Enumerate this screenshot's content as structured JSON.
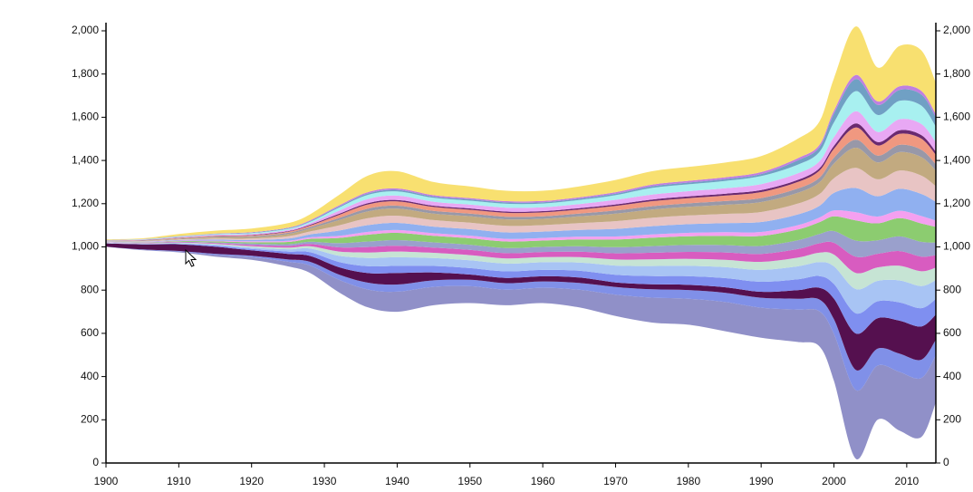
{
  "chart_data": {
    "type": "area",
    "subtype": "streamgraph",
    "title": "",
    "xlabel": "",
    "ylabel": "",
    "baseline": 1000,
    "xlim": [
      1900,
      2014
    ],
    "ylim": [
      0,
      2050
    ],
    "x_ticks": [
      "1900",
      "1910",
      "1920",
      "1930",
      "1940",
      "1950",
      "1960",
      "1970",
      "1980",
      "1990",
      "2000",
      "2010"
    ],
    "y_ticks_left": [
      "0",
      "200",
      "400",
      "600",
      "800",
      "1,000",
      "1,200",
      "1,400",
      "1,600",
      "1,800",
      "2,000"
    ],
    "y_ticks_right": [
      "0",
      "200",
      "400",
      "600",
      "800",
      "1,000",
      "1,200",
      "1,400",
      "1,600",
      "1,800",
      "2,000"
    ],
    "grid": false,
    "legend": "none",
    "x": [
      1900,
      1905,
      1910,
      1915,
      1920,
      1925,
      1928,
      1932,
      1936,
      1940,
      1945,
      1950,
      1955,
      1960,
      1965,
      1970,
      1975,
      1980,
      1985,
      1990,
      1995,
      1998,
      2000,
      2003,
      2006,
      2009,
      2012,
      2014
    ],
    "envelope": {
      "upper": [
        1035,
        1040,
        1060,
        1075,
        1085,
        1110,
        1150,
        1240,
        1330,
        1350,
        1300,
        1280,
        1260,
        1260,
        1280,
        1310,
        1350,
        1370,
        1390,
        1420,
        1500,
        1580,
        1780,
        2020,
        1830,
        1930,
        1910,
        1760
      ],
      "lower": [
        1000,
        985,
        975,
        955,
        940,
        910,
        880,
        790,
        720,
        700,
        730,
        740,
        730,
        740,
        720,
        680,
        650,
        640,
        610,
        580,
        560,
        540,
        380,
        20,
        200,
        150,
        120,
        280
      ]
    },
    "series": [
      {
        "color": "#9090c8",
        "w": [
          0.01,
          0.02,
          0.03,
          0.05,
          0.06,
          0.08,
          0.1,
          0.12,
          0.13,
          0.14,
          0.14,
          0.13,
          0.12,
          0.12,
          0.13,
          0.14,
          0.15,
          0.15,
          0.16,
          0.15,
          0.15,
          0.15,
          0.16,
          0.17,
          0.16,
          0.16,
          0.16,
          0.15
        ]
      },
      {
        "color": "#8090e8",
        "w": [
          0.01,
          0.02,
          0.02,
          0.03,
          0.03,
          0.04,
          0.05,
          0.05,
          0.05,
          0.05,
          0.05,
          0.05,
          0.05,
          0.05,
          0.05,
          0.05,
          0.05,
          0.05,
          0.05,
          0.05,
          0.05,
          0.05,
          0.05,
          0.05,
          0.05,
          0.05,
          0.05,
          0.05
        ]
      },
      {
        "color": "#55104f",
        "w": [
          0.3,
          0.3,
          0.25,
          0.2,
          0.12,
          0.1,
          0.08,
          0.07,
          0.07,
          0.08,
          0.06,
          0.04,
          0.04,
          0.04,
          0.04,
          0.03,
          0.03,
          0.03,
          0.03,
          0.03,
          0.04,
          0.05,
          0.07,
          0.09,
          0.09,
          0.09,
          0.09,
          0.08
        ]
      },
      {
        "color": "#7f8ff0",
        "w": [
          0.02,
          0.02,
          0.02,
          0.03,
          0.03,
          0.04,
          0.05,
          0.05,
          0.05,
          0.05,
          0.05,
          0.05,
          0.05,
          0.05,
          0.05,
          0.05,
          0.05,
          0.05,
          0.05,
          0.05,
          0.05,
          0.05,
          0.05,
          0.05,
          0.05,
          0.05,
          0.05,
          0.05
        ]
      },
      {
        "color": "#a8c4f4",
        "w": [
          0.02,
          0.02,
          0.02,
          0.03,
          0.03,
          0.04,
          0.05,
          0.06,
          0.06,
          0.06,
          0.06,
          0.06,
          0.06,
          0.06,
          0.06,
          0.06,
          0.06,
          0.06,
          0.06,
          0.06,
          0.06,
          0.06,
          0.06,
          0.06,
          0.06,
          0.06,
          0.06,
          0.06
        ]
      },
      {
        "color": "#c6e4d4",
        "w": [
          0.02,
          0.02,
          0.02,
          0.02,
          0.03,
          0.03,
          0.03,
          0.04,
          0.04,
          0.04,
          0.04,
          0.04,
          0.04,
          0.04,
          0.04,
          0.04,
          0.04,
          0.04,
          0.04,
          0.04,
          0.04,
          0.04,
          0.04,
          0.04,
          0.04,
          0.04,
          0.04,
          0.04
        ]
      },
      {
        "color": "#d85cc0",
        "w": [
          0.02,
          0.02,
          0.02,
          0.02,
          0.03,
          0.03,
          0.03,
          0.04,
          0.04,
          0.04,
          0.04,
          0.04,
          0.04,
          0.04,
          0.04,
          0.04,
          0.04,
          0.04,
          0.04,
          0.04,
          0.04,
          0.04,
          0.04,
          0.04,
          0.04,
          0.04,
          0.04,
          0.04
        ]
      },
      {
        "color": "#9aa0cc",
        "w": [
          0.02,
          0.02,
          0.02,
          0.02,
          0.03,
          0.03,
          0.03,
          0.04,
          0.04,
          0.04,
          0.04,
          0.04,
          0.04,
          0.04,
          0.04,
          0.04,
          0.04,
          0.04,
          0.04,
          0.04,
          0.04,
          0.04,
          0.04,
          0.04,
          0.04,
          0.04,
          0.04,
          0.04
        ]
      },
      {
        "color": "#8ccc70",
        "w": [
          0.02,
          0.02,
          0.02,
          0.03,
          0.03,
          0.04,
          0.04,
          0.05,
          0.05,
          0.05,
          0.05,
          0.05,
          0.05,
          0.05,
          0.05,
          0.05,
          0.05,
          0.05,
          0.05,
          0.05,
          0.05,
          0.05,
          0.05,
          0.05,
          0.05,
          0.05,
          0.05,
          0.05
        ]
      },
      {
        "color": "#f4a0f0",
        "w": [
          0.02,
          0.02,
          0.02,
          0.02,
          0.02,
          0.02,
          0.02,
          0.02,
          0.02,
          0.02,
          0.02,
          0.02,
          0.02,
          0.02,
          0.02,
          0.02,
          0.02,
          0.02,
          0.02,
          0.02,
          0.02,
          0.02,
          0.02,
          0.02,
          0.02,
          0.02,
          0.02,
          0.02
        ]
      },
      {
        "color": "#90b0f0",
        "w": [
          0.02,
          0.02,
          0.02,
          0.03,
          0.03,
          0.04,
          0.04,
          0.05,
          0.05,
          0.05,
          0.05,
          0.05,
          0.05,
          0.05,
          0.05,
          0.05,
          0.05,
          0.05,
          0.05,
          0.05,
          0.05,
          0.05,
          0.06,
          0.06,
          0.06,
          0.06,
          0.06,
          0.06
        ]
      },
      {
        "color": "#e8c4c4",
        "w": [
          0.02,
          0.02,
          0.02,
          0.03,
          0.03,
          0.04,
          0.04,
          0.05,
          0.05,
          0.05,
          0.05,
          0.05,
          0.05,
          0.05,
          0.05,
          0.05,
          0.05,
          0.05,
          0.05,
          0.05,
          0.05,
          0.05,
          0.05,
          0.05,
          0.05,
          0.05,
          0.05,
          0.05
        ]
      },
      {
        "color": "#c2aa80",
        "w": [
          0.02,
          0.02,
          0.02,
          0.03,
          0.03,
          0.04,
          0.04,
          0.05,
          0.05,
          0.05,
          0.05,
          0.05,
          0.05,
          0.05,
          0.05,
          0.05,
          0.05,
          0.05,
          0.05,
          0.05,
          0.05,
          0.05,
          0.05,
          0.05,
          0.05,
          0.05,
          0.05,
          0.05
        ]
      },
      {
        "color": "#9898a8",
        "w": [
          0.02,
          0.02,
          0.02,
          0.02,
          0.02,
          0.02,
          0.02,
          0.02,
          0.02,
          0.02,
          0.02,
          0.02,
          0.02,
          0.02,
          0.02,
          0.02,
          0.02,
          0.02,
          0.02,
          0.02,
          0.02,
          0.02,
          0.02,
          0.02,
          0.02,
          0.02,
          0.02,
          0.02
        ]
      },
      {
        "color": "#f09880",
        "w": [
          0.02,
          0.02,
          0.02,
          0.02,
          0.02,
          0.02,
          0.02,
          0.03,
          0.03,
          0.03,
          0.03,
          0.03,
          0.03,
          0.03,
          0.03,
          0.03,
          0.03,
          0.03,
          0.03,
          0.03,
          0.03,
          0.03,
          0.03,
          0.03,
          0.03,
          0.03,
          0.03,
          0.03
        ]
      },
      {
        "color": "#6a2a70",
        "w": [
          0.01,
          0.01,
          0.01,
          0.01,
          0.01,
          0.01,
          0.01,
          0.01,
          0.01,
          0.01,
          0.01,
          0.01,
          0.01,
          0.01,
          0.01,
          0.01,
          0.01,
          0.01,
          0.01,
          0.01,
          0.01,
          0.01,
          0.01,
          0.01,
          0.01,
          0.01,
          0.01,
          0.01
        ]
      },
      {
        "color": "#e8a8f4",
        "w": [
          0.02,
          0.02,
          0.02,
          0.02,
          0.02,
          0.02,
          0.02,
          0.03,
          0.03,
          0.03,
          0.03,
          0.03,
          0.03,
          0.03,
          0.03,
          0.03,
          0.03,
          0.03,
          0.03,
          0.03,
          0.03,
          0.03,
          0.03,
          0.03,
          0.03,
          0.03,
          0.03,
          0.03
        ]
      },
      {
        "color": "#a8f0f0",
        "w": [
          0.02,
          0.02,
          0.02,
          0.02,
          0.02,
          0.02,
          0.02,
          0.03,
          0.03,
          0.03,
          0.03,
          0.03,
          0.03,
          0.03,
          0.03,
          0.03,
          0.04,
          0.04,
          0.04,
          0.04,
          0.04,
          0.04,
          0.05,
          0.05,
          0.05,
          0.05,
          0.05,
          0.05
        ]
      },
      {
        "color": "#70a0c4",
        "w": [
          0.01,
          0.01,
          0.01,
          0.01,
          0.01,
          0.01,
          0.01,
          0.01,
          0.01,
          0.01,
          0.01,
          0.01,
          0.01,
          0.01,
          0.01,
          0.01,
          0.01,
          0.01,
          0.01,
          0.01,
          0.02,
          0.02,
          0.03,
          0.03,
          0.03,
          0.03,
          0.03,
          0.03
        ]
      },
      {
        "color": "#c080e0",
        "w": [
          0.01,
          0.01,
          0.01,
          0.01,
          0.01,
          0.01,
          0.01,
          0.01,
          0.01,
          0.01,
          0.01,
          0.01,
          0.01,
          0.01,
          0.01,
          0.01,
          0.01,
          0.01,
          0.01,
          0.01,
          0.01,
          0.01,
          0.01,
          0.01,
          0.01,
          0.01,
          0.01,
          0.01
        ]
      },
      {
        "color": "#f8e070",
        "w": [
          0.05,
          0.05,
          0.08,
          0.08,
          0.08,
          0.08,
          0.08,
          0.1,
          0.12,
          0.12,
          0.1,
          0.09,
          0.08,
          0.08,
          0.08,
          0.08,
          0.08,
          0.08,
          0.08,
          0.08,
          0.09,
          0.1,
          0.11,
          0.12,
          0.1,
          0.11,
          0.11,
          0.1
        ]
      }
    ]
  },
  "cursor": {
    "icon": "arrow-cursor-icon"
  }
}
